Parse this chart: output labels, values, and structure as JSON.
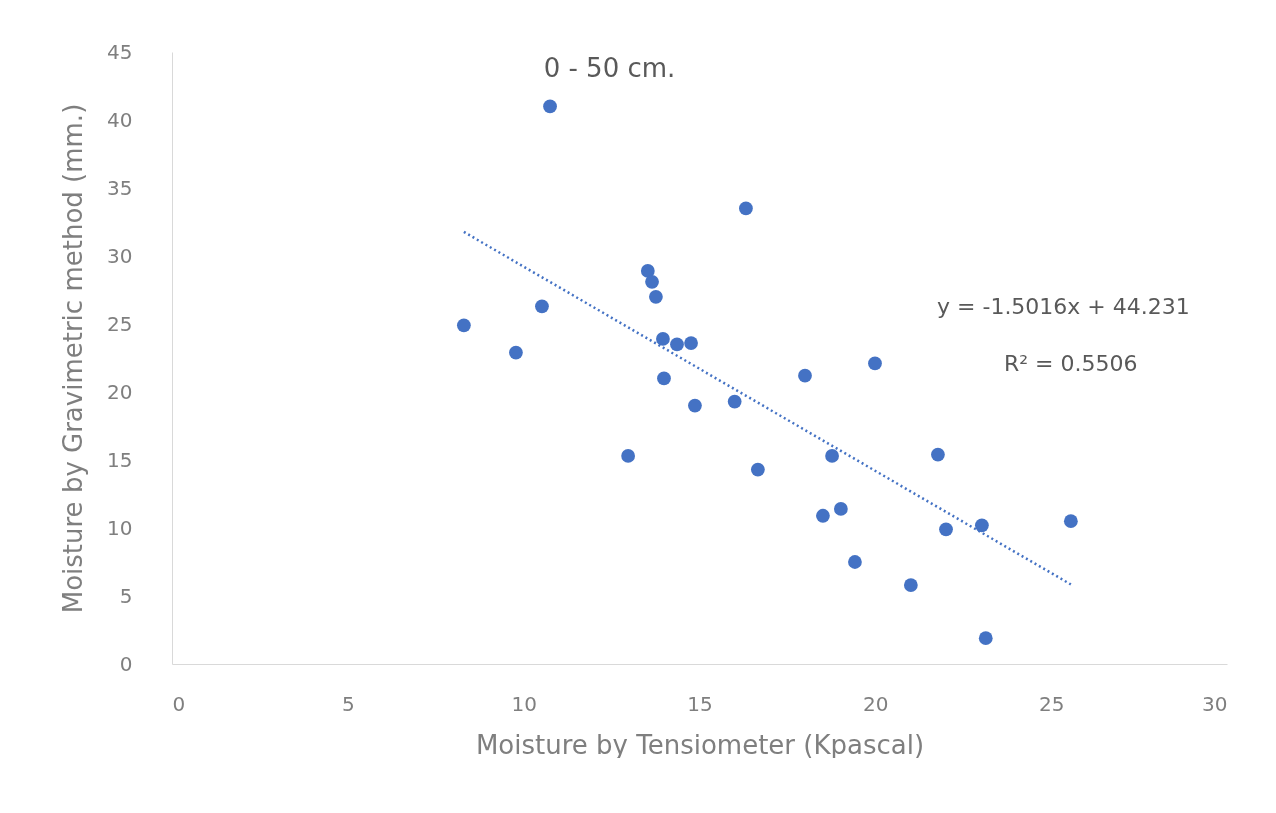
{
  "chart_data": {
    "type": "scatter",
    "title": "0 - 50 cm.",
    "xlabel": "Moisture by Tensiometer (Kpascal)",
    "ylabel": "Moisture by Gravimetric method (mm.)",
    "xlim": [
      0,
      30
    ],
    "xticks": [
      0,
      5,
      10,
      15,
      20,
      25,
      30
    ],
    "ylim": [
      0,
      45
    ],
    "yticks": [
      0,
      5,
      10,
      15,
      20,
      25,
      30,
      35,
      40,
      45
    ],
    "grid": false,
    "series": [
      {
        "color": "#4472c4",
        "marker": "circle",
        "x": [
          8.3,
          9.78,
          10.52,
          10.75,
          12.97,
          13.53,
          13.65,
          13.76,
          13.96,
          13.99,
          14.36,
          14.76,
          14.87,
          16.0,
          16.32,
          16.66,
          18.0,
          18.51,
          18.77,
          19.02,
          19.42,
          19.99,
          21.01,
          21.78,
          22.01,
          23.03,
          23.14,
          25.56
        ],
        "values": [
          24.9,
          22.9,
          26.3,
          41.0,
          15.3,
          28.9,
          28.1,
          27.0,
          23.9,
          21.0,
          23.5,
          23.6,
          19.0,
          19.3,
          33.5,
          14.3,
          21.2,
          10.9,
          15.3,
          11.4,
          7.5,
          22.1,
          5.8,
          15.4,
          9.9,
          10.2,
          1.9,
          10.5
        ]
      },
      {
        "type": "line",
        "color": "#4472c4",
        "line_style": "dotted",
        "marker": "none",
        "x": [
          8.3,
          25.56
        ],
        "values": [
          31.77,
          5.85
        ]
      }
    ],
    "annotations": [
      "y = -1.5016x + 44.231",
      "R² = 0.5506"
    ]
  }
}
